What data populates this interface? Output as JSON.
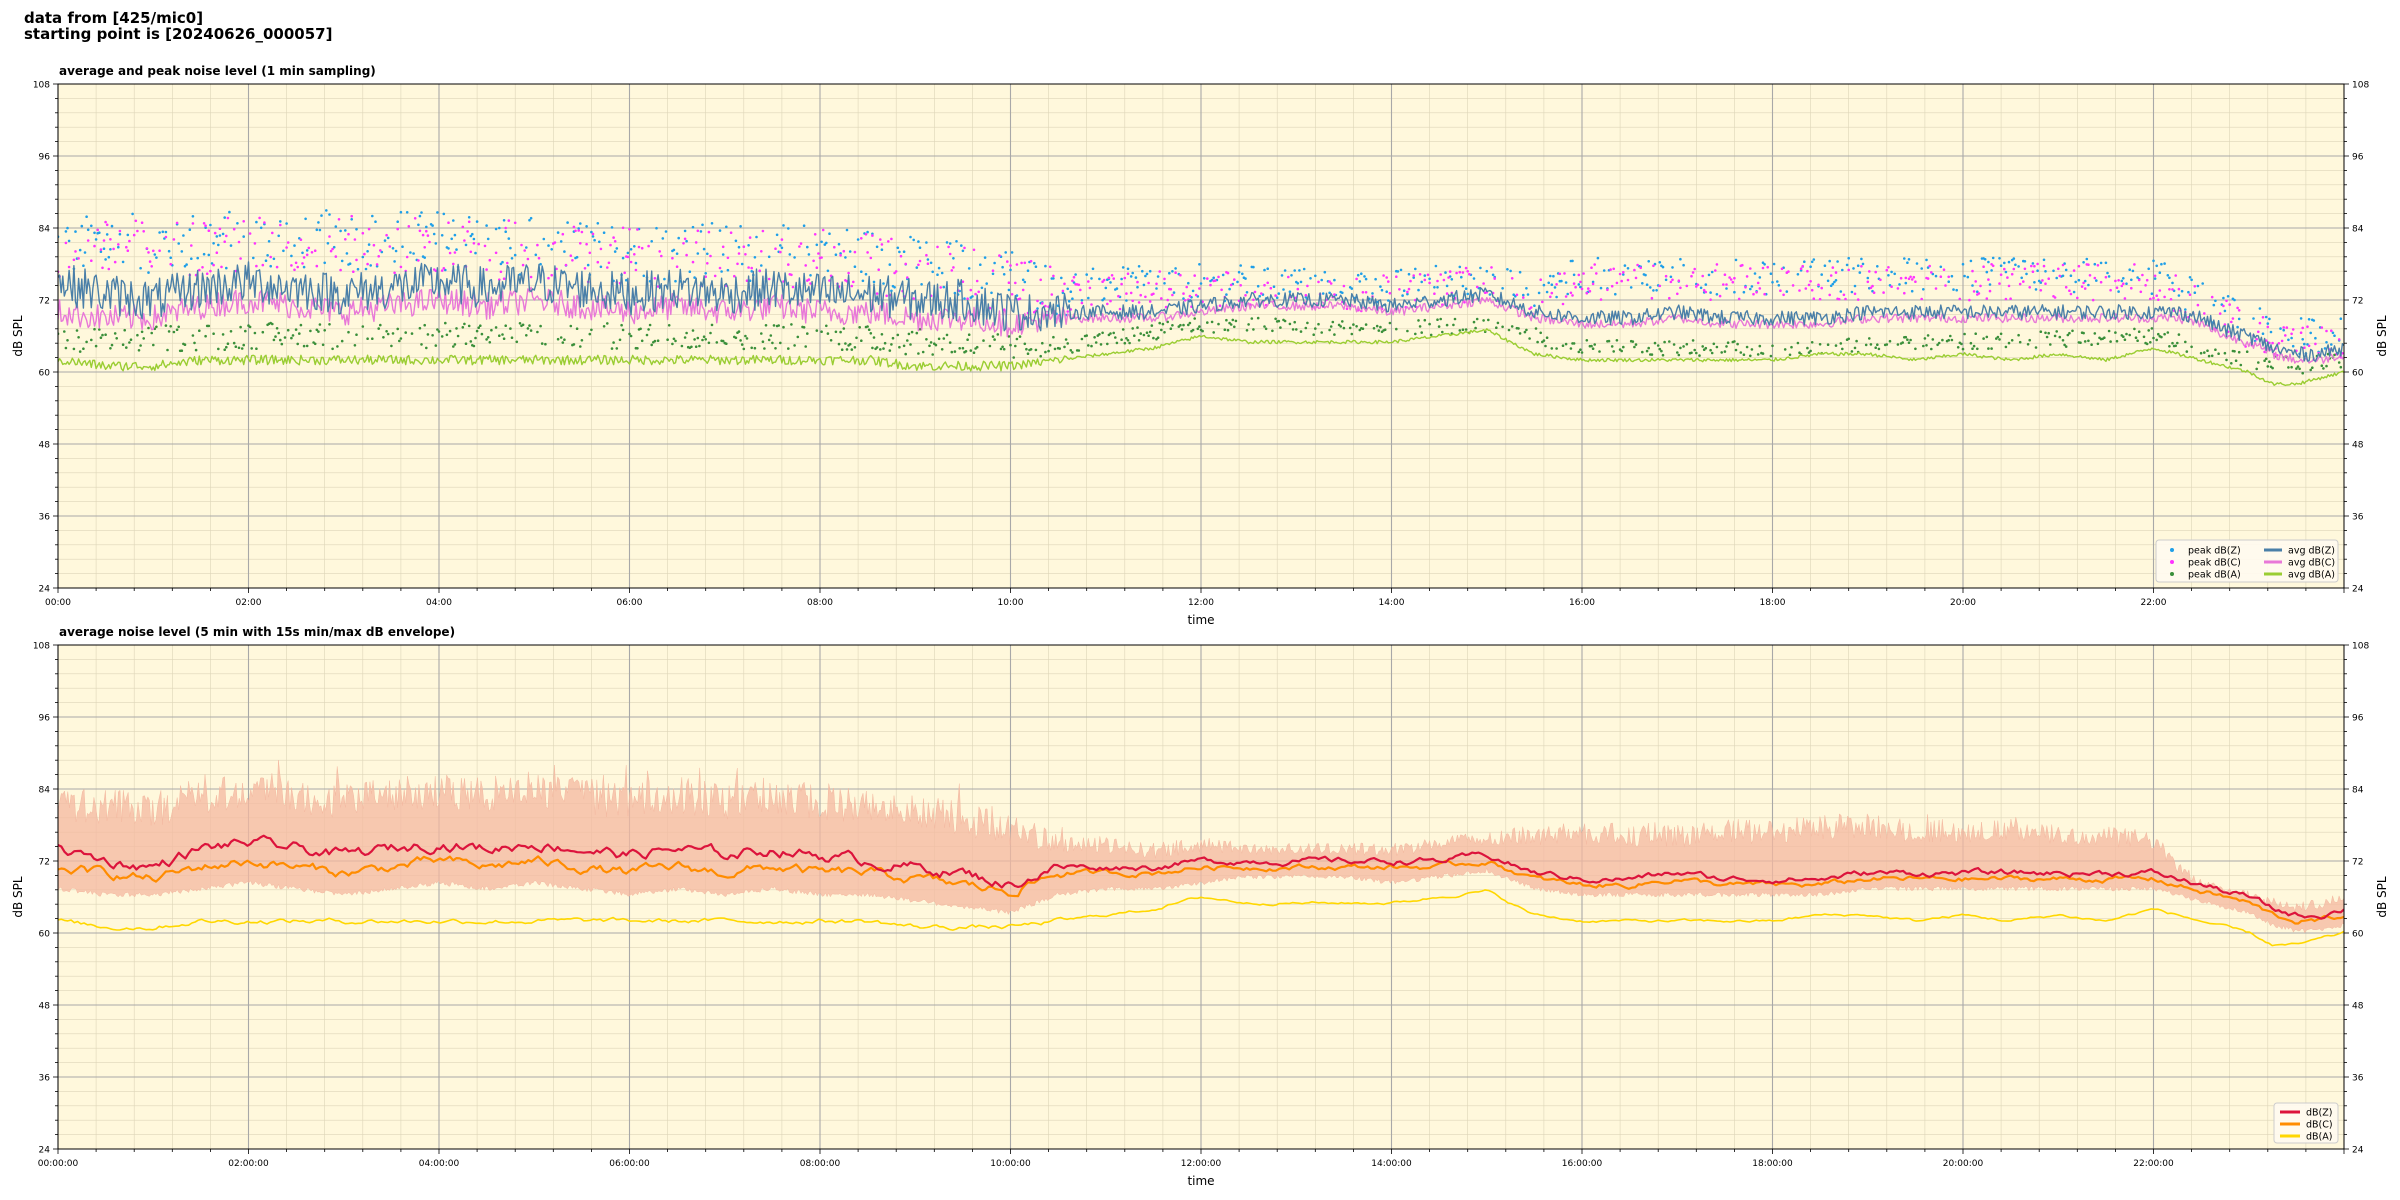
{
  "header": {
    "line1": "data from [425/mic0]",
    "line2": "starting point is [20240626_000057]"
  },
  "chart_data": [
    {
      "type": "line",
      "title": "average and peak noise level (1 min sampling)",
      "xlabel": "time",
      "ylabel": "dB SPL",
      "ylim": [
        24,
        108
      ],
      "yticks": [
        "24",
        "36",
        "48",
        "60",
        "72",
        "84",
        "96",
        "108"
      ],
      "xlim": [
        0,
        24
      ],
      "xticks": [
        "00:00",
        "02:00",
        "04:00",
        "06:00",
        "08:00",
        "10:00",
        "12:00",
        "14:00",
        "16:00",
        "18:00",
        "20:00",
        "22:00"
      ],
      "grid": true,
      "legend_position": "lower-right",
      "colors": {
        "background": "#fff8dc",
        "peak_z": "#1f9fe8",
        "peak_c": "#ff33ff",
        "peak_a": "#3a8f3a",
        "avg_z": "#4a7fa8",
        "avg_c": "#e878d8",
        "avg_a": "#9acd32"
      },
      "legend": [
        {
          "key": "peak_z",
          "label": "peak dB(Z)",
          "kind": "marker"
        },
        {
          "key": "peak_c",
          "label": "peak dB(C)",
          "kind": "marker"
        },
        {
          "key": "peak_a",
          "label": "peak dB(A)",
          "kind": "marker"
        },
        {
          "key": "avg_z",
          "label": "avg dB(Z)",
          "kind": "line"
        },
        {
          "key": "avg_c",
          "label": "avg dB(C)",
          "kind": "line"
        },
        {
          "key": "avg_a",
          "label": "avg dB(A)",
          "kind": "line"
        }
      ],
      "series": [
        {
          "key": "avg_z",
          "x": [
            0,
            0.5,
            1,
            1.5,
            2,
            2.5,
            3,
            3.5,
            4,
            4.5,
            5,
            5.5,
            6,
            6.5,
            7,
            7.5,
            8,
            8.5,
            9,
            9.5,
            10,
            10.5,
            11,
            11.5,
            12,
            12.5,
            13,
            13.5,
            14,
            14.5,
            15,
            15.5,
            16,
            16.5,
            17,
            17.5,
            18,
            18.5,
            19,
            19.5,
            20,
            20.5,
            21,
            21.5,
            22,
            22.25,
            22.5,
            22.75,
            23,
            23.25,
            23.5,
            23.75,
            24
          ],
          "y": [
            75,
            73,
            72,
            74,
            75,
            74,
            73,
            74,
            75,
            74,
            75,
            74,
            73,
            74,
            73,
            74,
            73,
            73,
            72,
            72,
            70,
            70,
            70,
            70,
            71,
            72,
            72,
            72,
            71,
            72,
            73,
            70,
            69,
            69,
            70,
            69,
            69,
            69,
            70,
            70,
            70,
            70,
            70,
            70,
            70,
            70,
            69,
            67,
            66,
            64,
            63,
            63,
            64
          ],
          "noise": 3.5
        },
        {
          "key": "avg_c",
          "x": [
            0,
            0.5,
            1,
            1.5,
            2,
            2.5,
            3,
            3.5,
            4,
            4.5,
            5,
            5.5,
            6,
            6.5,
            7,
            7.5,
            8,
            8.5,
            9,
            9.5,
            10,
            10.5,
            11,
            11.5,
            12,
            12.5,
            13,
            13.5,
            14,
            14.5,
            15,
            15.5,
            16,
            16.5,
            17,
            17.5,
            18,
            18.5,
            19,
            19.5,
            20,
            20.5,
            21,
            21.5,
            22,
            22.25,
            22.5,
            22.75,
            23,
            23.25,
            23.5,
            23.75,
            24
          ],
          "y": [
            70,
            69,
            69,
            71,
            72,
            71,
            70,
            71,
            72,
            71,
            72,
            71,
            70,
            71,
            70,
            71,
            70,
            70,
            69,
            69,
            68,
            69,
            69,
            69,
            70,
            71,
            71,
            71,
            70,
            71,
            72,
            69,
            68,
            68,
            69,
            68,
            68,
            68,
            69,
            69,
            69,
            69,
            69,
            69,
            69,
            69,
            68,
            66,
            65,
            63,
            62,
            62,
            63
          ],
          "noise": 2.2
        },
        {
          "key": "avg_a",
          "x": [
            0,
            0.5,
            1,
            1.5,
            2,
            2.5,
            3,
            3.5,
            4,
            4.5,
            5,
            5.5,
            6,
            6.5,
            7,
            7.5,
            8,
            8.5,
            9,
            9.5,
            10,
            10.5,
            11,
            11.5,
            12,
            12.5,
            13,
            13.5,
            14,
            14.5,
            15,
            15.5,
            16,
            16.5,
            17,
            17.5,
            18,
            18.5,
            19,
            19.5,
            20,
            20.5,
            21,
            21.5,
            22,
            22.25,
            22.5,
            22.75,
            23,
            23.25,
            23.5,
            23.75,
            24
          ],
          "y": [
            62,
            61,
            61,
            62,
            62,
            62,
            62,
            62,
            62,
            62,
            62,
            62,
            62,
            62,
            62,
            62,
            62,
            62,
            61,
            61,
            61,
            62,
            63,
            64,
            66,
            65,
            65,
            65,
            65,
            66,
            67,
            63,
            62,
            62,
            62,
            62,
            62,
            63,
            63,
            62,
            63,
            62,
            63,
            62,
            64,
            63,
            62,
            61,
            60,
            58,
            58,
            59,
            60
          ],
          "noise": 0.8
        }
      ],
      "scatter": [
        {
          "key": "peak_z",
          "x": [
            0,
            2,
            4,
            6,
            8,
            10,
            10.5,
            12,
            14,
            15,
            15.5,
            16,
            18,
            20,
            22,
            22.5,
            23,
            23.5,
            24
          ],
          "y": [
            81,
            82,
            82,
            80,
            80,
            76,
            74,
            75,
            74,
            76,
            74,
            76,
            76,
            76,
            76,
            72,
            68,
            66,
            66
          ],
          "spread": 5
        },
        {
          "key": "peak_c",
          "x": [
            0,
            2,
            4,
            6,
            8,
            10,
            10.5,
            12,
            14,
            15,
            15.5,
            16,
            18,
            20,
            22,
            22.5,
            23,
            23.5,
            24
          ],
          "y": [
            80,
            81,
            81,
            79,
            79,
            75,
            73,
            74,
            73,
            75,
            73,
            75,
            75,
            75,
            75,
            71,
            67,
            65,
            65
          ],
          "spread": 5
        },
        {
          "key": "peak_a",
          "x": [
            0,
            2,
            4,
            6,
            8,
            10,
            10.5,
            12,
            14,
            15,
            15.5,
            16,
            18,
            20,
            22,
            22.5,
            23,
            23.5,
            24
          ],
          "y": [
            65,
            66,
            66,
            66,
            66,
            64,
            64,
            68,
            67,
            68,
            66,
            64,
            64,
            65,
            66,
            64,
            62,
            61,
            62
          ],
          "spread": 2.2
        }
      ]
    },
    {
      "type": "line",
      "title": "average noise level (5 min with 15s min/max dB envelope)",
      "xlabel": "time",
      "ylabel": "dB SPL",
      "ylim": [
        24,
        108
      ],
      "yticks": [
        "24",
        "36",
        "48",
        "60",
        "72",
        "84",
        "96",
        "108"
      ],
      "xlim": [
        0,
        24
      ],
      "xticks": [
        "00:00:00",
        "02:00:00",
        "04:00:00",
        "06:00:00",
        "08:00:00",
        "10:00:00",
        "12:00:00",
        "14:00:00",
        "16:00:00",
        "18:00:00",
        "20:00:00",
        "22:00:00"
      ],
      "grid": true,
      "legend_position": "lower-right",
      "colors": {
        "background": "#fff8dc",
        "envelope": "#f4b8a0",
        "z": "#dc143c",
        "c": "#ff8c00",
        "a": "#ffd700"
      },
      "legend": [
        {
          "key": "z",
          "label": "dB(Z)",
          "kind": "line"
        },
        {
          "key": "c",
          "label": "dB(C)",
          "kind": "line"
        },
        {
          "key": "a",
          "label": "dB(A)",
          "kind": "line"
        }
      ],
      "envelope": {
        "x": [
          0,
          0.5,
          1,
          1.5,
          2,
          2.5,
          3,
          3.5,
          4,
          4.5,
          5,
          5.5,
          6,
          6.5,
          7,
          7.5,
          8,
          8.5,
          9,
          9.5,
          10,
          10.5,
          11,
          11.5,
          12,
          12.5,
          13,
          13.5,
          14,
          14.5,
          15,
          15.5,
          16,
          16.5,
          17,
          17.5,
          18,
          18.5,
          19,
          19.5,
          20,
          20.5,
          21,
          21.5,
          22,
          22.25,
          22.5,
          22.75,
          23,
          23.25,
          23.5,
          23.75,
          24
        ],
        "low": [
          67,
          66,
          66,
          67,
          68,
          67,
          66,
          67,
          68,
          67,
          68,
          67,
          66,
          67,
          66,
          67,
          66,
          66,
          65,
          64,
          63,
          66,
          67,
          67,
          68,
          69,
          69,
          69,
          68,
          69,
          70,
          67,
          66,
          66,
          66,
          66,
          66,
          66,
          67,
          67,
          67,
          67,
          67,
          67,
          67,
          66,
          65,
          64,
          63,
          61,
          60,
          60,
          61
        ],
        "high": [
          84,
          84,
          83,
          86,
          87,
          86,
          85,
          86,
          87,
          86,
          87,
          86,
          85,
          86,
          85,
          86,
          85,
          84,
          83,
          82,
          80,
          77,
          76,
          75,
          76,
          75,
          75,
          75,
          75,
          76,
          77,
          78,
          79,
          78,
          78,
          79,
          79,
          80,
          80,
          79,
          79,
          79,
          78,
          78,
          77,
          72,
          69,
          68,
          67,
          66,
          65,
          66,
          67
        ]
      },
      "series": [
        {
          "key": "z",
          "x": [
            0,
            0.5,
            1,
            1.5,
            2,
            2.5,
            3,
            3.5,
            4,
            4.5,
            5,
            5.5,
            6,
            6.5,
            7,
            7.5,
            8,
            8.5,
            9,
            9.5,
            10,
            10.5,
            11,
            11.5,
            12,
            12.5,
            13,
            13.5,
            14,
            14.5,
            15,
            15.5,
            16,
            16.5,
            17,
            17.5,
            18,
            18.5,
            19,
            19.5,
            20,
            20.5,
            21,
            21.5,
            22,
            22.25,
            22.5,
            22.75,
            23,
            23.25,
            23.5,
            23.75,
            24
          ],
          "y": [
            74,
            72,
            71,
            74,
            75,
            74,
            73,
            74,
            75,
            74,
            75,
            74,
            73,
            74,
            73,
            74,
            73,
            72,
            71,
            70,
            68,
            71,
            71,
            71,
            72,
            72,
            72,
            72,
            72,
            72,
            73,
            70,
            69,
            69,
            70,
            69,
            69,
            69,
            70,
            70,
            70,
            70,
            70,
            70,
            70,
            69,
            68,
            67,
            66,
            64,
            63,
            63,
            64
          ],
          "noise": 0.9
        },
        {
          "key": "c",
          "x": [
            0,
            0.5,
            1,
            1.5,
            2,
            2.5,
            3,
            3.5,
            4,
            4.5,
            5,
            5.5,
            6,
            6.5,
            7,
            7.5,
            8,
            8.5,
            9,
            9.5,
            10,
            10.5,
            11,
            11.5,
            12,
            12.5,
            13,
            13.5,
            14,
            14.5,
            15,
            15.5,
            16,
            16.5,
            17,
            17.5,
            18,
            18.5,
            19,
            19.5,
            20,
            20.5,
            21,
            21.5,
            22,
            22.25,
            22.5,
            22.75,
            23,
            23.25,
            23.5,
            23.75,
            24
          ],
          "y": [
            71,
            70,
            69,
            71,
            72,
            71,
            70,
            71,
            72,
            71,
            72,
            71,
            70,
            71,
            70,
            71,
            70,
            70,
            69,
            68,
            67,
            70,
            70,
            70,
            71,
            71,
            71,
            71,
            71,
            71,
            72,
            69,
            68,
            68,
            69,
            68,
            68,
            68,
            69,
            69,
            69,
            69,
            69,
            69,
            69,
            68,
            67,
            66,
            65,
            63,
            62,
            62,
            63
          ],
          "noise": 0.8
        },
        {
          "key": "a",
          "x": [
            0,
            0.5,
            1,
            1.5,
            2,
            2.5,
            3,
            3.5,
            4,
            4.5,
            5,
            5.5,
            6,
            6.5,
            7,
            7.5,
            8,
            8.5,
            9,
            9.5,
            10,
            10.5,
            11,
            11.5,
            12,
            12.5,
            13,
            13.5,
            14,
            14.5,
            15,
            15.5,
            16,
            16.5,
            17,
            17.5,
            18,
            18.5,
            19,
            19.5,
            20,
            20.5,
            21,
            21.5,
            22,
            22.25,
            22.5,
            22.75,
            23,
            23.25,
            23.5,
            23.75,
            24
          ],
          "y": [
            62,
            61,
            61,
            62,
            62,
            62,
            62,
            62,
            62,
            62,
            62,
            62,
            62,
            62,
            62,
            62,
            62,
            62,
            61,
            61,
            61,
            62,
            63,
            64,
            66,
            65,
            65,
            65,
            65,
            66,
            67,
            63,
            62,
            62,
            62,
            62,
            62,
            63,
            63,
            62,
            63,
            62,
            63,
            62,
            64,
            63,
            62,
            61,
            60,
            58,
            58,
            59,
            60
          ],
          "noise": 0.4
        }
      ]
    }
  ]
}
